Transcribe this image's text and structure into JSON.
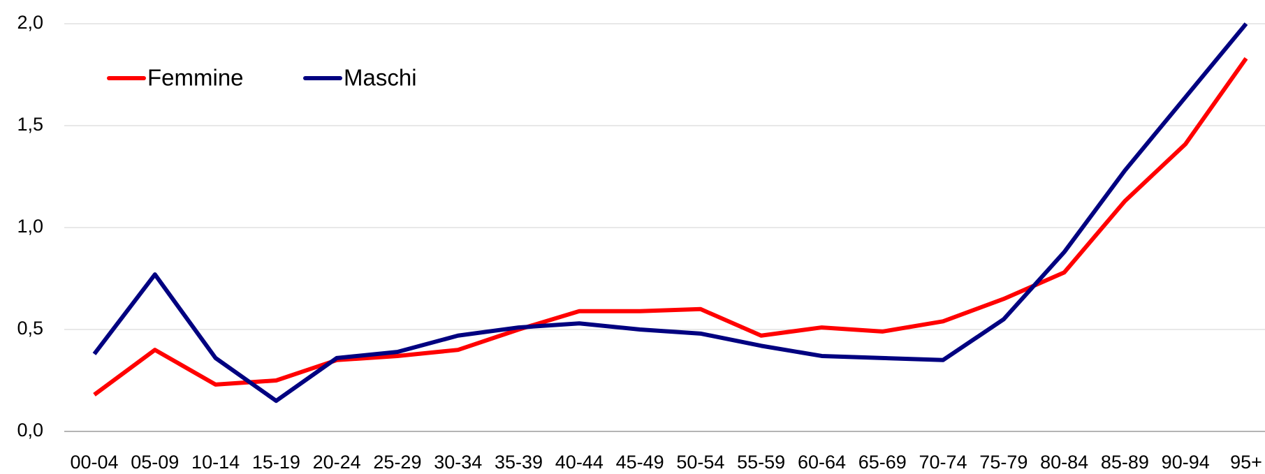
{
  "chart_data": {
    "type": "line",
    "categories": [
      "00-04",
      "05-09",
      "10-14",
      "15-19",
      "20-24",
      "25-29",
      "30-34",
      "35-39",
      "40-44",
      "45-49",
      "50-54",
      "55-59",
      "60-64",
      "65-69",
      "70-74",
      "75-79",
      "80-84",
      "85-89",
      "90-94",
      "95+"
    ],
    "series": [
      {
        "name": "Femmine",
        "color": "#ff0000",
        "values": [
          0.18,
          0.4,
          0.23,
          0.25,
          0.35,
          0.37,
          0.4,
          0.5,
          0.59,
          0.59,
          0.6,
          0.47,
          0.51,
          0.49,
          0.54,
          0.65,
          0.78,
          1.13,
          1.41,
          1.83
        ]
      },
      {
        "name": "Maschi",
        "color": "#000080",
        "values": [
          0.38,
          0.77,
          0.36,
          0.15,
          0.36,
          0.39,
          0.47,
          0.51,
          0.53,
          0.5,
          0.48,
          0.42,
          0.37,
          0.36,
          0.35,
          0.55,
          0.88,
          1.28,
          1.64,
          2.0
        ]
      }
    ],
    "ylim": [
      0,
      2
    ],
    "yticks": [
      {
        "value": 0,
        "label": "0,0"
      },
      {
        "value": 0.5,
        "label": "0,5"
      },
      {
        "value": 1,
        "label": "1,0"
      },
      {
        "value": 1.5,
        "label": "1,5"
      },
      {
        "value": 2,
        "label": "2,0"
      }
    ],
    "grid": true,
    "legend": "top-left"
  }
}
